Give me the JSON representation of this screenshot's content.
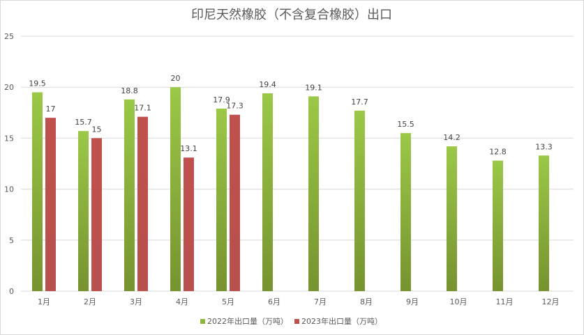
{
  "chart_data": {
    "type": "bar",
    "title": "印尼天然橡胶（不含复合橡胶）出口",
    "xlabel": "",
    "ylabel": "",
    "ylim": [
      0,
      25
    ],
    "yticks": [
      "0",
      "5",
      "10",
      "15",
      "20",
      "25"
    ],
    "grid": true,
    "legend_position": "bottom",
    "categories": [
      "1月",
      "2月",
      "3月",
      "4月",
      "5月",
      "6月",
      "7月",
      "8月",
      "9月",
      "10月",
      "11月",
      "12月"
    ],
    "series": [
      {
        "name": "2022年出口量（万吨）",
        "color": "#8db63c",
        "values": [
          19.5,
          15.7,
          18.8,
          20,
          17.9,
          19.4,
          19.1,
          17.7,
          15.5,
          14.2,
          12.8,
          13.3
        ]
      },
      {
        "name": "2023年出口量（万吨）",
        "color": "#c0504d",
        "values": [
          17,
          15,
          17.1,
          13.1,
          17.3,
          null,
          null,
          null,
          null,
          null,
          null,
          null
        ]
      }
    ]
  }
}
